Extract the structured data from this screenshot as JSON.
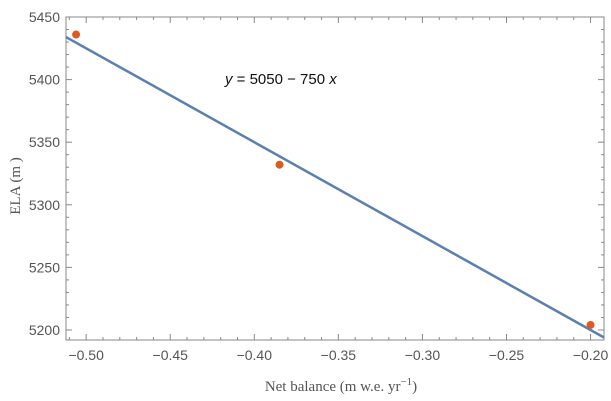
{
  "chart_data": {
    "type": "scatter",
    "title": "",
    "xlabel": "Net balance (m w.e. yr",
    "xlabel_sup": "−1",
    "xlabel_end": ")",
    "ylabel": "ELA (m )",
    "xlim": [
      -0.512,
      -0.192
    ],
    "ylim": [
      5192,
      5450
    ],
    "x_ticks": [
      -0.5,
      -0.45,
      -0.4,
      -0.35,
      -0.3,
      -0.25,
      -0.2
    ],
    "x_tick_labels": [
      "−0.50",
      "−0.45",
      "−0.40",
      "−0.35",
      "−0.30",
      "−0.25",
      "−0.20"
    ],
    "y_ticks": [
      5200,
      5250,
      5300,
      5350,
      5400,
      5450
    ],
    "y_tick_labels": [
      "5200",
      "5250",
      "5300",
      "5350",
      "5400",
      "5450"
    ],
    "points": [
      {
        "x": -0.506,
        "y": 5436
      },
      {
        "x": -0.385,
        "y": 5332
      },
      {
        "x": -0.2,
        "y": 5204
      }
    ],
    "fit_line": {
      "intercept": 5050,
      "slope": -750
    },
    "annotation": {
      "y_var": "y",
      "eq": " = 5050 − 750 ",
      "x_var": "x"
    },
    "grid": false,
    "colors": {
      "points": "#dd5b1f",
      "line": "#5a7fb0",
      "axes": "#888888"
    }
  }
}
